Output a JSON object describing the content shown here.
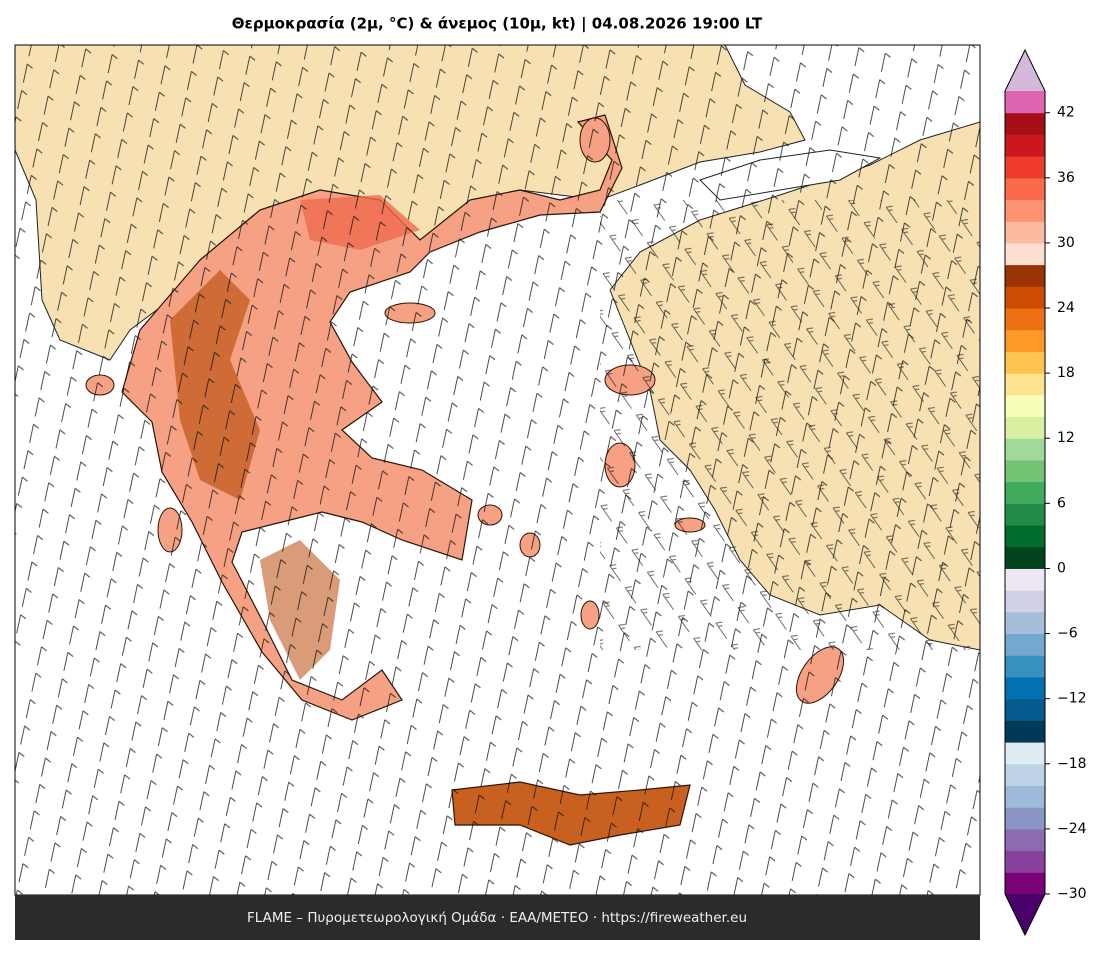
{
  "title": "Θερμοκρασία (2μ, °C) & άνεμος (10μ, kt)  |  04.08.2026 19:00 LT",
  "footer": "FLAME – Πυρομετεωρολογική Ομάδα · ΕΑΑ/METEO · https://fireweather.eu",
  "colorbar": {
    "clim": [
      -30,
      44
    ],
    "colors": [
      "#7a0177",
      "#88419d",
      "#8c6bb1",
      "#8c96c6",
      "#9ebcda",
      "#bfd3e6",
      "#e0ecf4",
      "#023858",
      "#045a8d",
      "#0570b0",
      "#3690c0",
      "#74a9cf",
      "#a6bddb",
      "#d0d1e6",
      "#ece7f2",
      "#00441b",
      "#006d2c",
      "#238b45",
      "#41ab5d",
      "#74c476",
      "#a1d99b",
      "#d9f0a3",
      "#f7fcb9",
      "#fee391",
      "#fec44f",
      "#fe9929",
      "#ec7014",
      "#cc4c02",
      "#993404",
      "#fee0d2",
      "#fcbba1",
      "#fc9272",
      "#fb6a4a",
      "#ef3b2c",
      "#cb181d",
      "#a50f15",
      "#df65b0"
    ],
    "under_color": "#49006a",
    "over_color": "#d4b9da",
    "ticks": [
      {
        "value": -30,
        "label": "−30"
      },
      {
        "value": -24,
        "label": "−24"
      },
      {
        "value": -18,
        "label": "−18"
      },
      {
        "value": -12,
        "label": "−12"
      },
      {
        "value": -6,
        "label": "−6"
      },
      0,
      6,
      12,
      18,
      24,
      30,
      36,
      42
    ]
  }
}
